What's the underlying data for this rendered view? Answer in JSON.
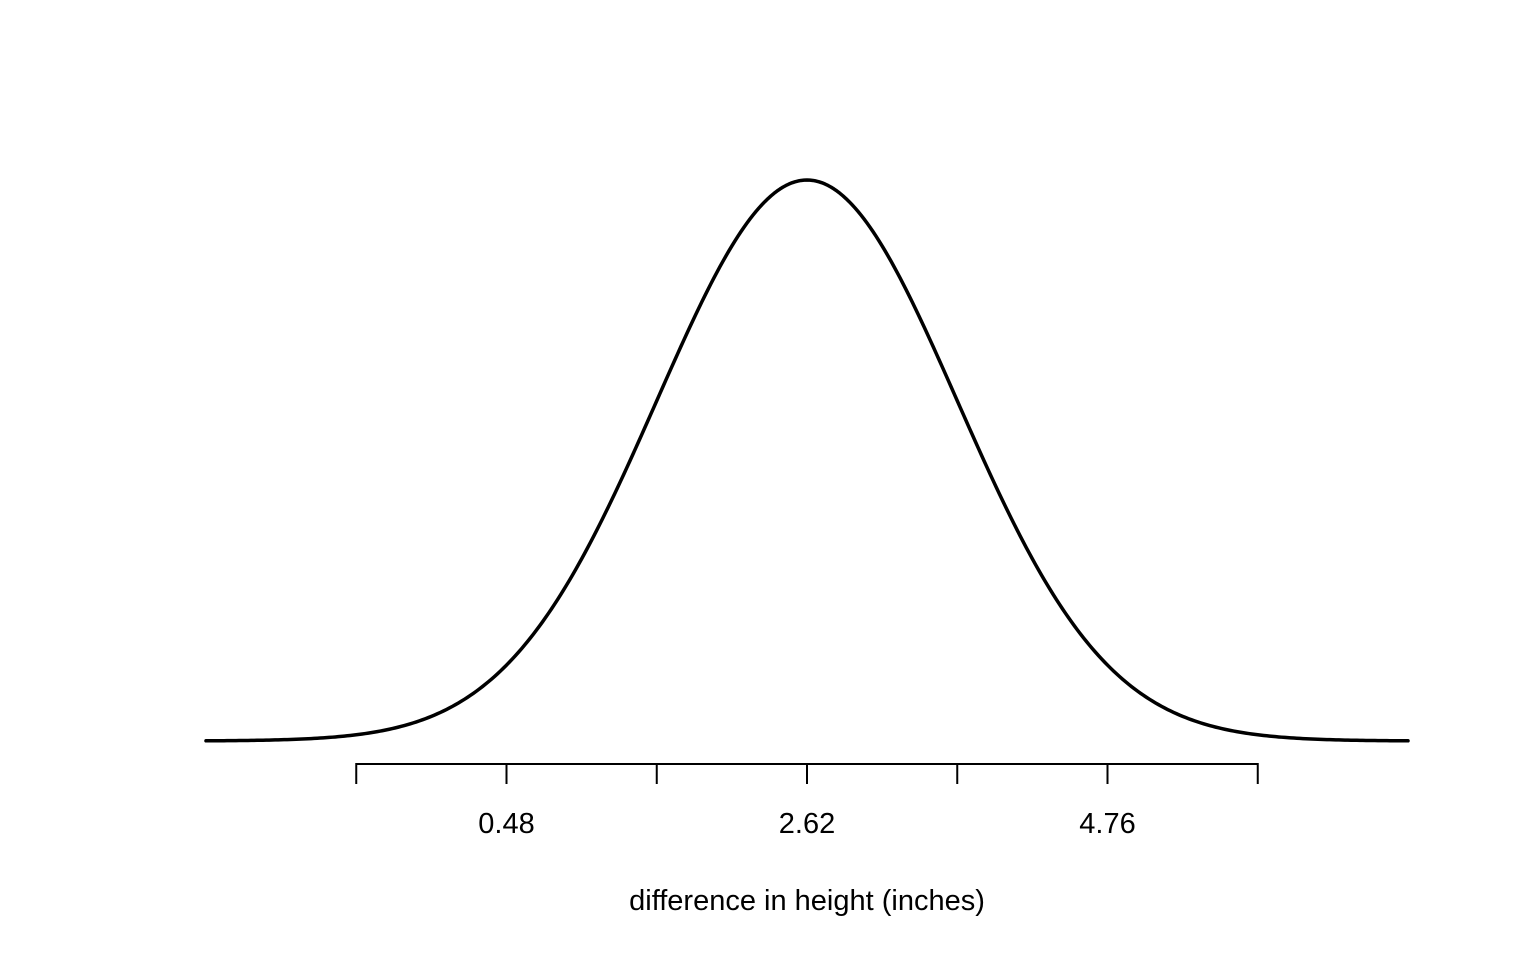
{
  "chart_data": {
    "type": "line",
    "title": "",
    "xlabel": "difference in height (inches)",
    "ylabel": "",
    "curve": "normal density",
    "mean": 2.62,
    "sd": 1.07,
    "xlim": [
      -1.66,
      6.9
    ],
    "ticks": [
      -0.59,
      0.48,
      1.55,
      2.62,
      3.69,
      4.76,
      5.83
    ],
    "tick_labels": [
      "",
      "0.48",
      "",
      "2.62",
      "",
      "4.76",
      ""
    ],
    "grid": false,
    "legend": "none",
    "colors": {
      "curve": "#000000",
      "axis": "#000000",
      "background": "#ffffff"
    }
  }
}
